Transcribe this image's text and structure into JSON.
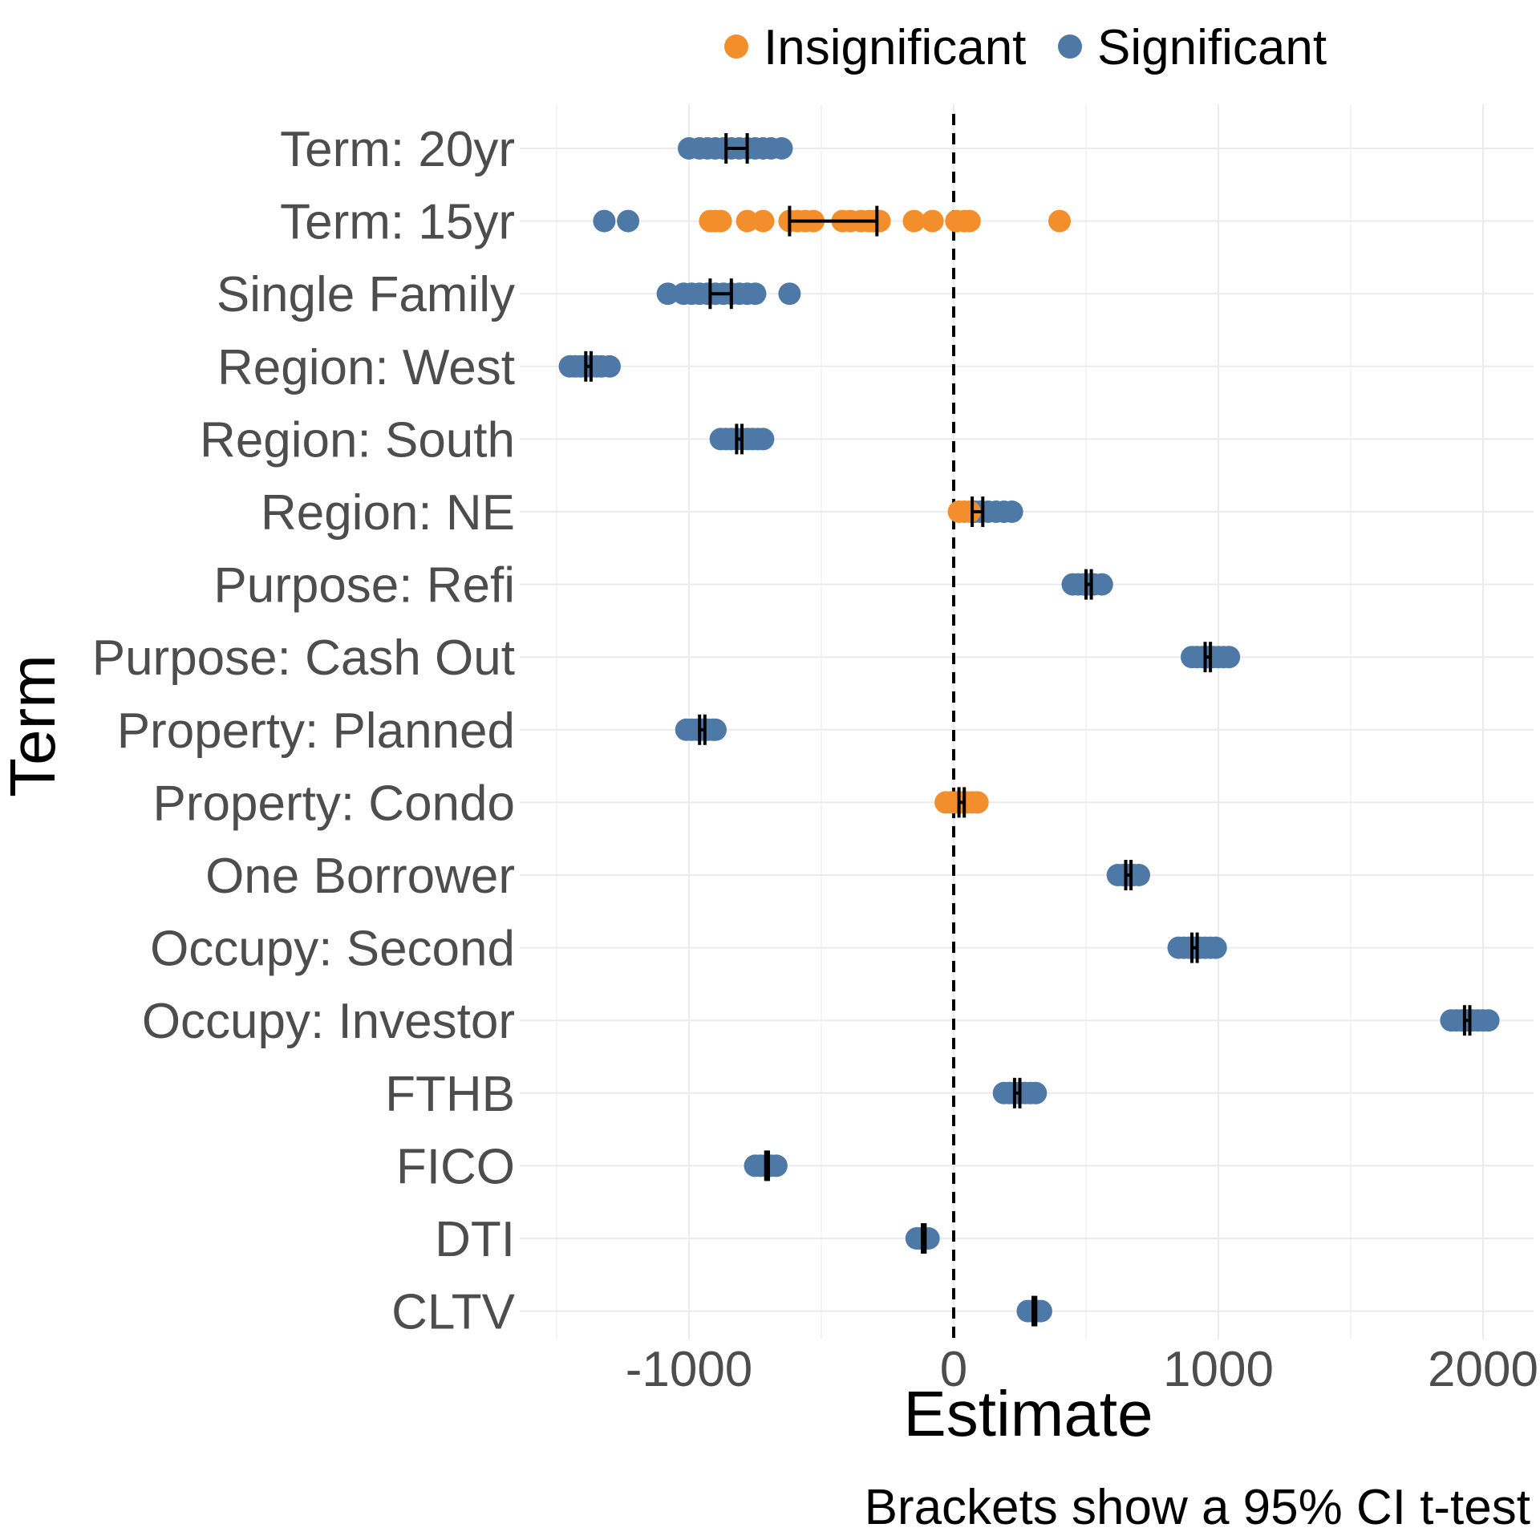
{
  "chart_data": {
    "type": "scatter",
    "xlabel": "Estimate",
    "ylabel": "Term",
    "caption": "Brackets show a 95% CI t-test",
    "xlim": [
      -1500,
      2100
    ],
    "xticks": [
      -1000,
      0,
      1000,
      2000
    ],
    "x_tick_labels": [
      "-1000",
      "0",
      "1000",
      "2000"
    ],
    "reference_line": 0,
    "grid": true,
    "legend": {
      "position": "top",
      "entries": [
        {
          "name": "Insignificant",
          "color": "#F28E2B"
        },
        {
          "name": "Significant",
          "color": "#4E79A7"
        }
      ]
    },
    "categories": [
      "Term: 20yr",
      "Term: 15yr",
      "Single Family",
      "Region: West",
      "Region: South",
      "Region: NE",
      "Purpose: Refi",
      "Purpose: Cash Out",
      "Property: Planned",
      "Property: Condo",
      "One Borrower",
      "Occupy: Second",
      "Occupy: Investor",
      "FTHB",
      "FICO",
      "DTI",
      "CLTV"
    ],
    "terms": [
      {
        "term": "Term: 20yr",
        "ci": [
          -860,
          -780
        ],
        "insignificant": [],
        "significant": [
          -1000,
          -960,
          -930,
          -900,
          -870,
          -840,
          -810,
          -780,
          -750,
          -720,
          -690,
          -650
        ]
      },
      {
        "term": "Term: 15yr",
        "ci": [
          -620,
          -290
        ],
        "insignificant": [
          -920,
          -900,
          -880,
          -780,
          -720,
          -620,
          -590,
          -560,
          -530,
          -420,
          -390,
          -350,
          -320,
          -300,
          -280,
          -150,
          -80,
          10,
          40,
          60,
          400
        ],
        "significant": [
          -1320,
          -1230
        ]
      },
      {
        "term": "Single Family",
        "ci": [
          -920,
          -840
        ],
        "insignificant": [],
        "significant": [
          -1080,
          -1020,
          -990,
          -960,
          -930,
          -900,
          -870,
          -840,
          -810,
          -780,
          -750,
          -620
        ]
      },
      {
        "term": "Region: West",
        "ci": [
          -1390,
          -1370
        ],
        "insignificant": [],
        "significant": [
          -1450,
          -1430,
          -1410,
          -1390,
          -1370,
          -1350,
          -1330,
          -1300
        ]
      },
      {
        "term": "Region: South",
        "ci": [
          -820,
          -800
        ],
        "insignificant": [],
        "significant": [
          -880,
          -860,
          -840,
          -820,
          -800,
          -780,
          -760,
          -740,
          -720
        ]
      },
      {
        "term": "Region: NE",
        "ci": [
          70,
          110
        ],
        "insignificant": [
          20,
          40,
          60
        ],
        "significant": [
          80,
          100,
          130,
          160,
          190,
          220
        ]
      },
      {
        "term": "Purpose: Refi",
        "ci": [
          500,
          520
        ],
        "insignificant": [],
        "significant": [
          450,
          470,
          490,
          510,
          530,
          560
        ]
      },
      {
        "term": "Purpose: Cash Out",
        "ci": [
          950,
          970
        ],
        "insignificant": [],
        "significant": [
          900,
          920,
          940,
          960,
          980,
          1000,
          1020,
          1040
        ]
      },
      {
        "term": "Property: Planned",
        "ci": [
          -960,
          -940
        ],
        "insignificant": [],
        "significant": [
          -1010,
          -990,
          -970,
          -950,
          -930,
          -910,
          -900
        ]
      },
      {
        "term": "Property: Condo",
        "ci": [
          20,
          40
        ],
        "insignificant": [
          -30,
          -10,
          10,
          30,
          50,
          70,
          90
        ],
        "significant": []
      },
      {
        "term": "One Borrower",
        "ci": [
          650,
          670
        ],
        "insignificant": [],
        "significant": [
          620,
          640,
          660,
          680,
          700
        ]
      },
      {
        "term": "Occupy: Second",
        "ci": [
          900,
          920
        ],
        "insignificant": [],
        "significant": [
          850,
          870,
          890,
          910,
          930,
          950,
          970,
          990
        ]
      },
      {
        "term": "Occupy: Investor",
        "ci": [
          1930,
          1950
        ],
        "insignificant": [],
        "significant": [
          1880,
          1900,
          1920,
          1940,
          1960,
          1980,
          2000,
          2020
        ]
      },
      {
        "term": "FTHB",
        "ci": [
          230,
          250
        ],
        "insignificant": [],
        "significant": [
          190,
          210,
          230,
          250,
          270,
          290,
          310
        ]
      },
      {
        "term": "FICO",
        "ci": [
          -710,
          -700
        ],
        "insignificant": [],
        "significant": [
          -750,
          -730,
          -710,
          -700,
          -690,
          -670
        ]
      },
      {
        "term": "DTI",
        "ci": [
          -118,
          -108
        ],
        "insignificant": [],
        "significant": [
          -140,
          -125,
          -110,
          -95
        ]
      },
      {
        "term": "CLTV",
        "ci": [
          300,
          310
        ],
        "insignificant": [],
        "significant": [
          280,
          295,
          305,
          315,
          330
        ]
      }
    ]
  }
}
